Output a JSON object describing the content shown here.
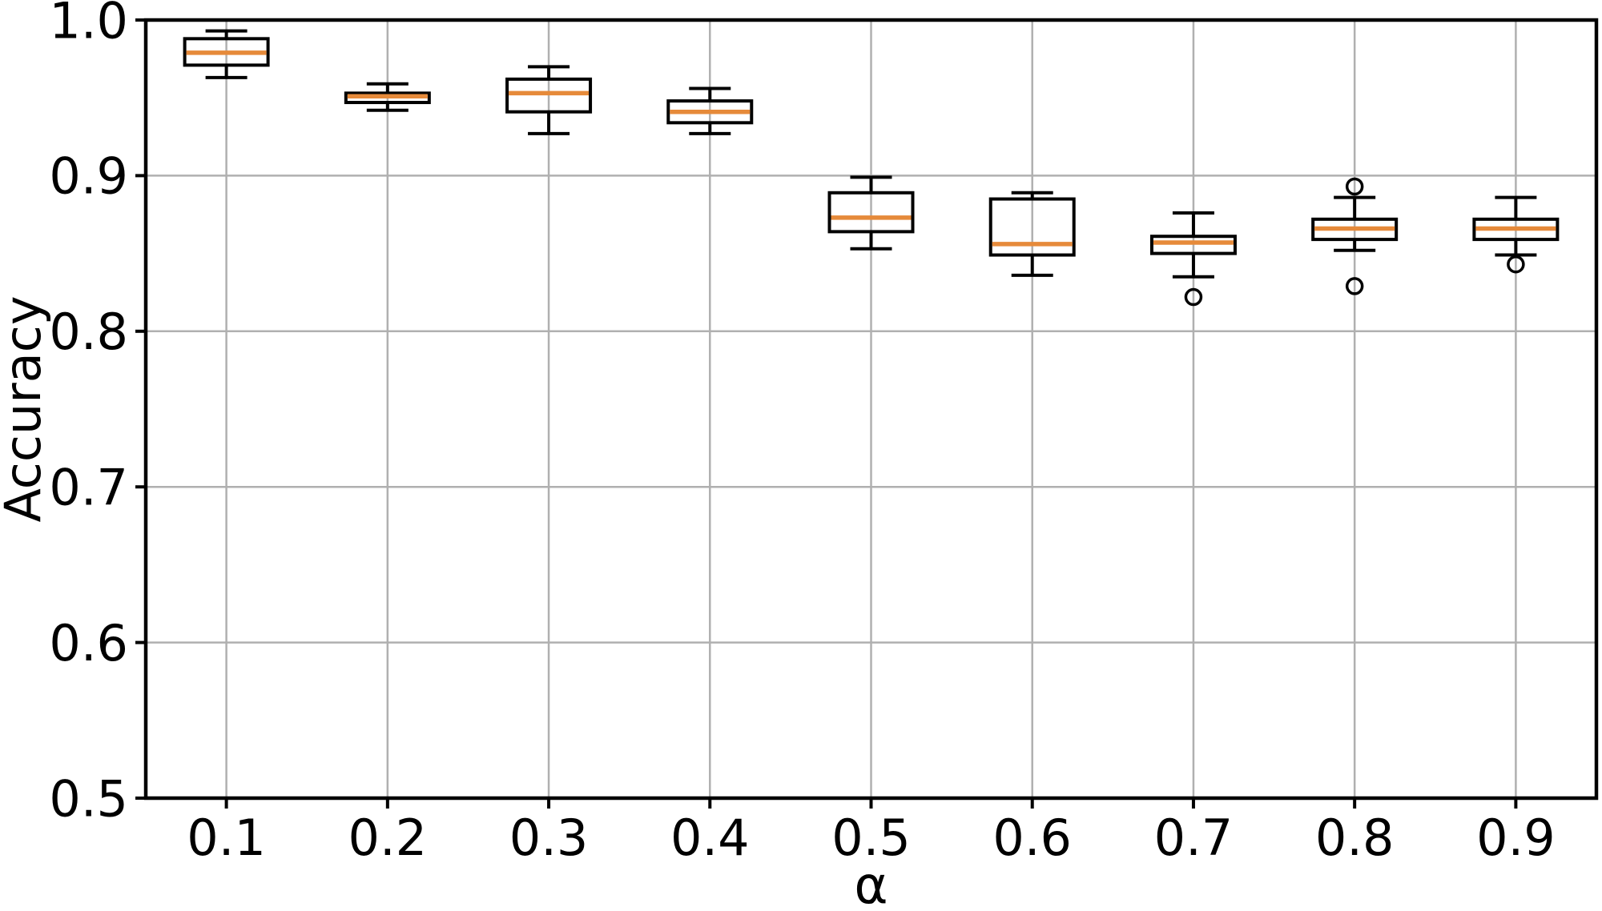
{
  "figure": {
    "background": "#ffffff"
  },
  "chart_data": {
    "type": "box",
    "title": "",
    "xlabel": "α",
    "ylabel": "Accuracy",
    "categories": [
      "0.1",
      "0.2",
      "0.3",
      "0.4",
      "0.5",
      "0.6",
      "0.7",
      "0.8",
      "0.9"
    ],
    "ylim": [
      0.5,
      1.0
    ],
    "yticks": {
      "values": [
        1.0,
        0.9,
        0.8,
        0.7,
        0.6,
        0.5
      ],
      "labels": [
        "1.0",
        "0.9",
        "0.8",
        "0.7",
        "0.6",
        "0.5"
      ]
    },
    "grid": true,
    "legend": null,
    "series": [
      {
        "category": "0.1",
        "whislo": 0.963,
        "q1": 0.971,
        "median": 0.979,
        "q3": 0.988,
        "whishi": 0.993,
        "fliers": []
      },
      {
        "category": "0.2",
        "whislo": 0.942,
        "q1": 0.947,
        "median": 0.951,
        "q3": 0.953,
        "whishi": 0.959,
        "fliers": []
      },
      {
        "category": "0.3",
        "whislo": 0.927,
        "q1": 0.941,
        "median": 0.953,
        "q3": 0.962,
        "whishi": 0.97,
        "fliers": []
      },
      {
        "category": "0.4",
        "whislo": 0.927,
        "q1": 0.934,
        "median": 0.941,
        "q3": 0.948,
        "whishi": 0.956,
        "fliers": []
      },
      {
        "category": "0.5",
        "whislo": 0.853,
        "q1": 0.864,
        "median": 0.873,
        "q3": 0.889,
        "whishi": 0.899,
        "fliers": []
      },
      {
        "category": "0.6",
        "whislo": 0.836,
        "q1": 0.849,
        "median": 0.856,
        "q3": 0.885,
        "whishi": 0.889,
        "fliers": []
      },
      {
        "category": "0.7",
        "whislo": 0.835,
        "q1": 0.85,
        "median": 0.857,
        "q3": 0.861,
        "whishi": 0.876,
        "fliers": [
          0.822
        ]
      },
      {
        "category": "0.8",
        "whislo": 0.852,
        "q1": 0.859,
        "median": 0.866,
        "q3": 0.872,
        "whishi": 0.886,
        "fliers": [
          0.893,
          0.829
        ]
      },
      {
        "category": "0.9",
        "whislo": 0.849,
        "q1": 0.859,
        "median": 0.866,
        "q3": 0.872,
        "whishi": 0.886,
        "fliers": [
          0.843
        ]
      }
    ],
    "colors": {
      "median": "#e68a3a",
      "box_edge": "#000000",
      "whisker": "#000000",
      "grid": "#b0b0b0",
      "spine": "#000000",
      "text": "#000000",
      "background": "#ffffff"
    }
  }
}
